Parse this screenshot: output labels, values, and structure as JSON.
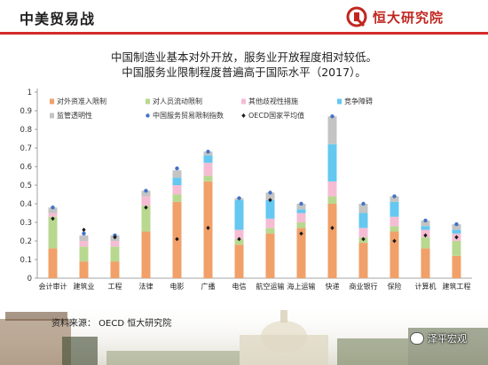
{
  "header": {
    "title": "中美贸易战",
    "logo_text": "恒大研究院"
  },
  "subtitle": {
    "line1": "中国制造业基本对外开放，服务业开放程度相对较低。",
    "line2": "中国服务业限制程度普遍高于国际水平（2017）。"
  },
  "footer": {
    "source": "资料来源： OECD 恒大研究院",
    "watermark": "泽平宏观"
  },
  "colors": {
    "brand_red": "#d42a2a",
    "foreign_entry": "#f0a068",
    "personnel": "#b8d890",
    "discrimination": "#f6bcd4",
    "competition": "#64c8f0",
    "transparency": "#c4c4c4",
    "china_index": "#4472c4",
    "oecd_avg": "#1a1a1a"
  },
  "chart_data": {
    "type": "bar",
    "stacked": true,
    "categories": [
      "会计审计",
      "建筑业",
      "工程",
      "法律",
      "电影",
      "广播",
      "电信",
      "航空运输",
      "海上运输",
      "快递",
      "商业银行",
      "保险",
      "计算机",
      "建筑工程"
    ],
    "series": [
      {
        "name": "对外资准入限制",
        "color": "#f0a068",
        "values": [
          0.16,
          0.09,
          0.09,
          0.25,
          0.41,
          0.52,
          0.18,
          0.24,
          0.27,
          0.4,
          0.19,
          0.25,
          0.16,
          0.12
        ]
      },
      {
        "name": "对人员流动限制",
        "color": "#b8d890",
        "values": [
          0.17,
          0.08,
          0.08,
          0.14,
          0.04,
          0.03,
          0.03,
          0.03,
          0.03,
          0.04,
          0.03,
          0.03,
          0.06,
          0.08
        ]
      },
      {
        "name": "其他歧视性措施",
        "color": "#f6bcd4",
        "values": [
          0.02,
          0.03,
          0.03,
          0.05,
          0.05,
          0.07,
          0.05,
          0.05,
          0.05,
          0.08,
          0.05,
          0.05,
          0.04,
          0.04
        ]
      },
      {
        "name": "竞争障碍",
        "color": "#64c8f0",
        "values": [
          0.0,
          0.0,
          0.0,
          0.0,
          0.04,
          0.04,
          0.16,
          0.1,
          0.02,
          0.2,
          0.08,
          0.08,
          0.02,
          0.02
        ]
      },
      {
        "name": "监管透明性",
        "color": "#c4c4c4",
        "values": [
          0.03,
          0.03,
          0.03,
          0.03,
          0.04,
          0.02,
          0.01,
          0.04,
          0.03,
          0.15,
          0.05,
          0.03,
          0.03,
          0.03
        ]
      }
    ],
    "markers": [
      {
        "name": "中国服务贸易限制指数",
        "color": "#4472c4",
        "shape": "circle",
        "values": [
          0.38,
          0.24,
          0.23,
          0.47,
          0.59,
          0.68,
          0.43,
          0.46,
          0.4,
          0.87,
          0.4,
          0.44,
          0.31,
          0.29
        ]
      },
      {
        "name": "OECD国家平均值",
        "color": "#1a1a1a",
        "shape": "diamond",
        "values": [
          0.32,
          0.26,
          0.22,
          0.38,
          0.21,
          0.27,
          0.21,
          0.42,
          0.24,
          0.27,
          0.21,
          0.2,
          0.23,
          0.22
        ]
      }
    ],
    "yticks": [
      "0",
      "0.1",
      "0.2",
      "0.3",
      "0.4",
      "0.5",
      "0.6",
      "0.7",
      "0.8",
      "0.9",
      "1"
    ],
    "ylim": [
      0,
      1
    ],
    "grid": false,
    "legend_position": "top-inside"
  }
}
